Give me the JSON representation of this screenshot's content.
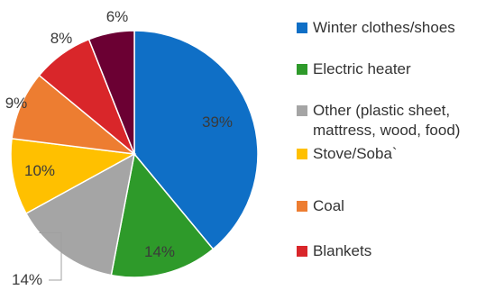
{
  "chart_data": {
    "type": "pie",
    "title": "",
    "slices": [
      {
        "label": "Winter clothes/shoes",
        "value": 39,
        "value_label": "39%",
        "color": "#0F6FC6"
      },
      {
        "label": "Electric heater",
        "value": 14,
        "value_label": "14%",
        "color": "#2E9A2A"
      },
      {
        "label": "Other (plastic sheet,\nmattress, wood, food)",
        "value": 14,
        "value_label": "14%",
        "color": "#A5A5A5"
      },
      {
        "label": "Stove/Soba`",
        "value": 10,
        "value_label": "10%",
        "color": "#FFC000"
      },
      {
        "label": "Coal",
        "value": 9,
        "value_label": "9%",
        "color": "#ED7D31"
      },
      {
        "label": "Blankets",
        "value": 8,
        "value_label": "8%",
        "color": "#D9262A"
      },
      {
        "label": "",
        "value": 6,
        "value_label": "6%",
        "color": "#6B0033"
      }
    ],
    "legend_position": "right"
  }
}
